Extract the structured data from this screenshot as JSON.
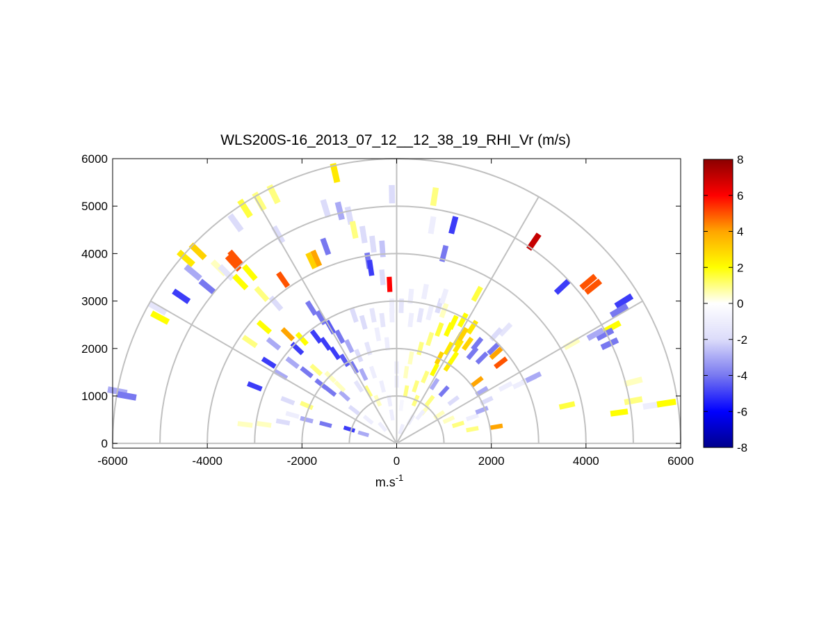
{
  "chart_data": {
    "type": "heatmap",
    "subtype": "polar-rhi-scan",
    "title": "WLS200S-16_2013_07_12__12_38_19_RHI_Vr (m/s)",
    "xlabel": "m.s",
    "xlabel_superscript": "-1",
    "ylabel": "",
    "xlim": [
      -6000,
      6000
    ],
    "ylim": [
      -100,
      6000
    ],
    "xticks": [
      -6000,
      -4000,
      -2000,
      0,
      2000,
      4000,
      6000
    ],
    "xtick_labels": [
      "-6000",
      "-4000",
      "-2000",
      "0",
      "2000",
      "4000",
      "6000"
    ],
    "yticks": [
      0,
      1000,
      2000,
      3000,
      4000,
      5000,
      6000
    ],
    "ytick_labels": [
      "0",
      "1000",
      "2000",
      "3000",
      "4000",
      "5000",
      "6000"
    ],
    "polar_grid": {
      "range_rings": [
        1000,
        2000,
        3000,
        4000,
        5000,
        6000
      ],
      "spokes_deg": [
        0,
        30,
        60,
        90,
        120,
        150,
        180
      ]
    },
    "colorbar": {
      "min": -8,
      "max": 8,
      "ticks": [
        8,
        6,
        4,
        2,
        0,
        -2,
        -4,
        -6,
        -8
      ],
      "tick_labels": [
        "8",
        "6",
        "4",
        "2",
        "0",
        "-2",
        "-4",
        "-6",
        "-8"
      ],
      "colormap": [
        "#00008c",
        "#0000ff",
        "#7878f0",
        "#dcdcfa",
        "#ffffff",
        "#ffff00",
        "#ffa500",
        "#ff0000",
        "#8b0000"
      ]
    },
    "cells": [
      [
        -5900,
        1100,
        -3
      ],
      [
        -5700,
        1000,
        -4
      ],
      [
        -5050,
        2850,
        -1.5
      ],
      [
        -5000,
        2650,
        2
      ],
      [
        -4550,
        3100,
        -5
      ],
      [
        -4450,
        3900,
        2.5
      ],
      [
        -4200,
        4050,
        3
      ],
      [
        -4300,
        3600,
        -3
      ],
      [
        -4000,
        3300,
        -4
      ],
      [
        -3750,
        3700,
        0.5
      ],
      [
        -3600,
        3600,
        -1.5
      ],
      [
        -3450,
        3800,
        5
      ],
      [
        -3400,
        3900,
        5
      ],
      [
        -3300,
        3400,
        2
      ],
      [
        -3100,
        3600,
        2
      ],
      [
        -3400,
        4650,
        -2
      ],
      [
        -3200,
        4950,
        1.5
      ],
      [
        -2900,
        5100,
        1
      ],
      [
        -2600,
        5250,
        1
      ],
      [
        -2500,
        4400,
        -2
      ],
      [
        -2400,
        3450,
        5
      ],
      [
        -2850,
        3150,
        1
      ],
      [
        -2550,
        2950,
        -2
      ],
      [
        -1800,
        2850,
        -4
      ],
      [
        -1600,
        2650,
        -4
      ],
      [
        -1400,
        2450,
        -4.5
      ],
      [
        -1200,
        2250,
        -4
      ],
      [
        -1000,
        2050,
        -3
      ],
      [
        -1700,
        2250,
        -5
      ],
      [
        -1500,
        2100,
        -5
      ],
      [
        -1300,
        1900,
        -5
      ],
      [
        -1100,
        1750,
        -4.5
      ],
      [
        -900,
        1600,
        -4
      ],
      [
        -700,
        1450,
        -3
      ],
      [
        -900,
        2700,
        -2
      ],
      [
        -700,
        2550,
        -2
      ],
      [
        -500,
        2700,
        -1.5
      ],
      [
        -300,
        2600,
        -1.5
      ],
      [
        -100,
        2700,
        -1
      ],
      [
        -400,
        2300,
        -1
      ],
      [
        -200,
        2100,
        -1
      ],
      [
        -600,
        2000,
        -1.5
      ],
      [
        -800,
        1850,
        -2
      ],
      [
        -500,
        1500,
        -1
      ],
      [
        -300,
        1200,
        -1
      ],
      [
        -150,
        900,
        -1
      ],
      [
        -400,
        900,
        0.5
      ],
      [
        -600,
        1100,
        1
      ],
      [
        -800,
        1200,
        -1.5
      ],
      [
        -1100,
        1000,
        -3
      ],
      [
        -1400,
        1100,
        -4
      ],
      [
        -1600,
        1250,
        -4
      ],
      [
        -1900,
        1500,
        -4
      ],
      [
        -2200,
        1700,
        -3
      ],
      [
        -2100,
        2000,
        -5
      ],
      [
        -2000,
        2200,
        2
      ],
      [
        -2300,
        2300,
        4
      ],
      [
        -2600,
        2100,
        -3
      ],
      [
        -2800,
        2450,
        2
      ],
      [
        -3100,
        2150,
        1
      ],
      [
        -2700,
        1700,
        -5
      ],
      [
        -2450,
        1450,
        -3
      ],
      [
        -3000,
        1200,
        -5
      ],
      [
        -2300,
        900,
        -2
      ],
      [
        -2200,
        600,
        -1
      ],
      [
        -1900,
        500,
        -3
      ],
      [
        -1500,
        400,
        -4
      ],
      [
        -1000,
        300,
        -5
      ],
      [
        -700,
        200,
        -3
      ],
      [
        -3200,
        400,
        0.5
      ],
      [
        -2800,
        400,
        0.5
      ],
      [
        -2400,
        450,
        -2
      ],
      [
        -1900,
        800,
        1
      ],
      [
        -1700,
        1550,
        1
      ],
      [
        -1400,
        1400,
        0.5
      ],
      [
        -1200,
        1200,
        0.5
      ],
      [
        -900,
        700,
        -2
      ],
      [
        -600,
        500,
        -1
      ],
      [
        -300,
        350,
        -1
      ],
      [
        -1200,
        4900,
        -3
      ],
      [
        -1000,
        4800,
        -2
      ],
      [
        -1500,
        4950,
        -2
      ],
      [
        -1300,
        5700,
        2.5
      ],
      [
        -900,
        4500,
        1
      ],
      [
        -700,
        4400,
        -2
      ],
      [
        -500,
        4200,
        -2
      ],
      [
        -300,
        4100,
        -2.5
      ],
      [
        -600,
        3850,
        -4
      ],
      [
        -550,
        3700,
        -5
      ],
      [
        -300,
        3500,
        -2
      ],
      [
        -150,
        3350,
        6
      ],
      [
        -1500,
        4150,
        -4
      ],
      [
        -1700,
        3900,
        4
      ],
      [
        -1800,
        3850,
        3
      ],
      [
        -100,
        5250,
        -2
      ],
      [
        800,
        5200,
        1
      ],
      [
        750,
        4600,
        -1
      ],
      [
        1200,
        4600,
        -5
      ],
      [
        1000,
        4000,
        -4
      ],
      [
        1700,
        3150,
        1.5
      ],
      [
        2900,
        4250,
        7
      ],
      [
        3500,
        3300,
        -5
      ],
      [
        4050,
        3400,
        5
      ],
      [
        4150,
        3300,
        5
      ],
      [
        4800,
        3000,
        -5
      ],
      [
        4700,
        2800,
        -4
      ],
      [
        4550,
        2450,
        2
      ],
      [
        4400,
        2300,
        -4
      ],
      [
        4200,
        2300,
        -3
      ],
      [
        3700,
        2100,
        0.5
      ],
      [
        4500,
        2100,
        -4
      ],
      [
        5000,
        1300,
        0.5
      ],
      [
        5000,
        900,
        1
      ],
      [
        5400,
        800,
        -1
      ],
      [
        5700,
        850,
        2
      ],
      [
        4700,
        650,
        2
      ],
      [
        3600,
        800,
        1.5
      ],
      [
        2900,
        1400,
        -3
      ],
      [
        2800,
        1350,
        -3
      ],
      [
        2600,
        1250,
        -1
      ],
      [
        2300,
        1200,
        -1
      ],
      [
        2300,
        2400,
        -1.5
      ],
      [
        2100,
        2300,
        -2
      ],
      [
        2050,
        2000,
        -4
      ],
      [
        2100,
        1900,
        4
      ],
      [
        2200,
        1700,
        5
      ],
      [
        1700,
        2100,
        -4
      ],
      [
        1600,
        1900,
        -4
      ],
      [
        1800,
        1800,
        -4
      ],
      [
        1300,
        2200,
        2.5
      ],
      [
        1100,
        2000,
        2.5
      ],
      [
        900,
        1800,
        3
      ],
      [
        1100,
        1650,
        2.5
      ],
      [
        800,
        1550,
        2
      ],
      [
        600,
        1400,
        1
      ],
      [
        400,
        1200,
        1
      ],
      [
        700,
        2200,
        1
      ],
      [
        900,
        2400,
        1.5
      ],
      [
        1100,
        2400,
        2
      ],
      [
        1300,
        2050,
        2.5
      ],
      [
        1200,
        1800,
        2
      ],
      [
        500,
        2000,
        1
      ],
      [
        300,
        1800,
        0.5
      ],
      [
        300,
        2600,
        -1
      ],
      [
        500,
        2700,
        -1.5
      ],
      [
        700,
        2750,
        -1
      ],
      [
        900,
        2900,
        -2
      ],
      [
        1000,
        2800,
        0.5
      ],
      [
        1200,
        2550,
        2
      ],
      [
        1400,
        2600,
        2
      ],
      [
        1600,
        2450,
        2.5
      ],
      [
        1400,
        2300,
        3
      ],
      [
        1500,
        2100,
        3
      ],
      [
        200,
        1100,
        1
      ],
      [
        400,
        900,
        1
      ],
      [
        600,
        700,
        0.5
      ],
      [
        700,
        900,
        1
      ],
      [
        900,
        600,
        0.5
      ],
      [
        1100,
        500,
        0.5
      ],
      [
        1300,
        400,
        1
      ],
      [
        1600,
        300,
        1
      ],
      [
        2100,
        350,
        4
      ],
      [
        1600,
        550,
        -1
      ],
      [
        1800,
        700,
        -3
      ],
      [
        1200,
        900,
        -2
      ],
      [
        1000,
        1100,
        -4
      ],
      [
        800,
        1250,
        -3
      ],
      [
        500,
        600,
        -1
      ],
      [
        300,
        500,
        -1
      ],
      [
        100,
        300,
        -1
      ],
      [
        0,
        1600,
        -1
      ],
      [
        0,
        1300,
        -1
      ],
      [
        -100,
        600,
        -1
      ],
      [
        100,
        800,
        -0.5
      ],
      [
        200,
        1500,
        0.5
      ],
      [
        1700,
        1300,
        4
      ],
      [
        1800,
        1100,
        -3
      ],
      [
        1900,
        900,
        -2
      ],
      [
        300,
        3100,
        -1
      ],
      [
        600,
        3200,
        -1
      ],
      [
        1000,
        3100,
        -1
      ],
      [
        100,
        2900,
        -1.5
      ],
      [
        -100,
        2900,
        -1
      ]
    ]
  }
}
